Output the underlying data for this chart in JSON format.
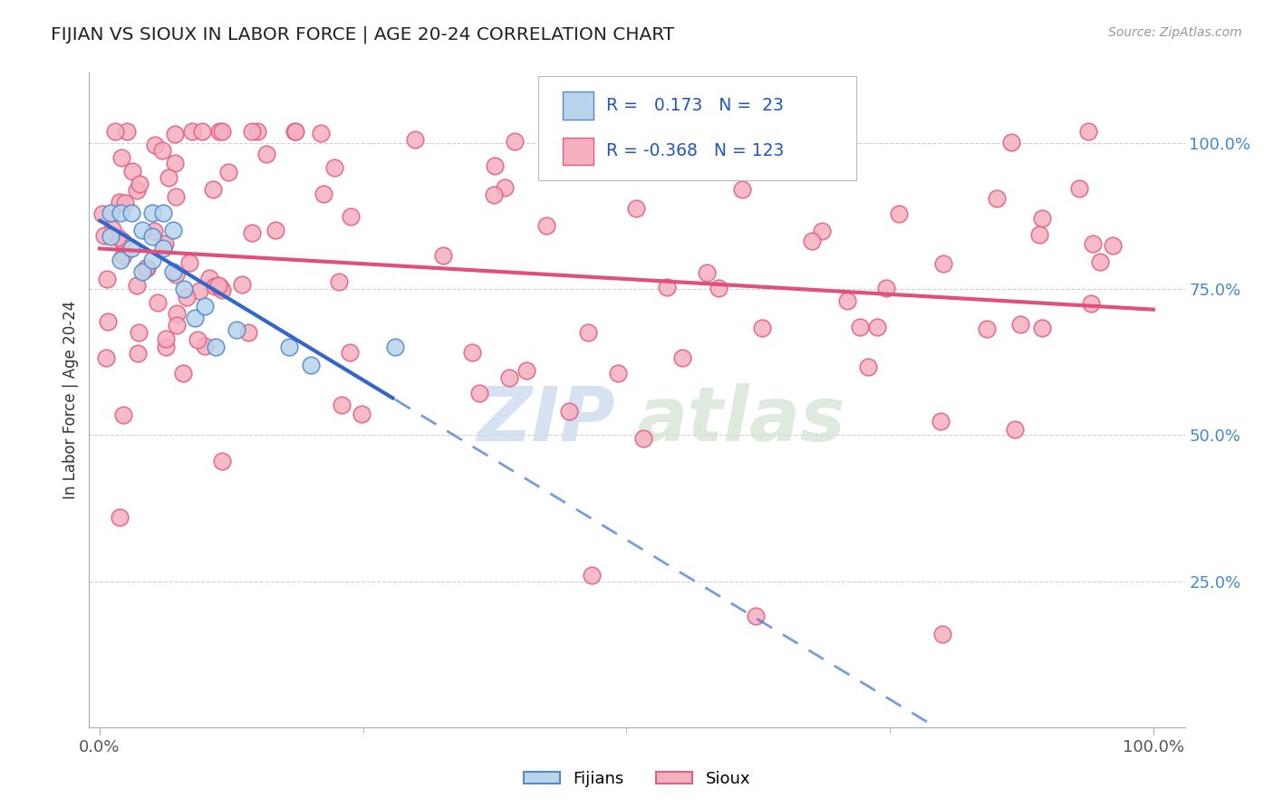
{
  "title": "FIJIAN VS SIOUX IN LABOR FORCE | AGE 20-24 CORRELATION CHART",
  "source_text": "Source: ZipAtlas.com",
  "ylabel": "In Labor Force | Age 20-24",
  "fijian_color": "#b8d4ea",
  "sioux_color": "#f5b0c0",
  "fijian_edge_color": "#5588cc",
  "sioux_edge_color": "#e06080",
  "trend_blue": "#3366cc",
  "trend_pink": "#e0507a",
  "legend_text_color": "#2255bb",
  "R_fijian": 0.173,
  "N_fijian": 23,
  "R_sioux": -0.368,
  "N_sioux": 123,
  "legend_label_fijian": "Fijians",
  "legend_label_sioux": "Sioux",
  "title_color": "#222222",
  "axis_label_color": "#333333",
  "tick_color_y": "#4488cc",
  "tick_color_x": "#555555",
  "grid_color": "#cccccc",
  "watermark_color": "#dde8f5"
}
